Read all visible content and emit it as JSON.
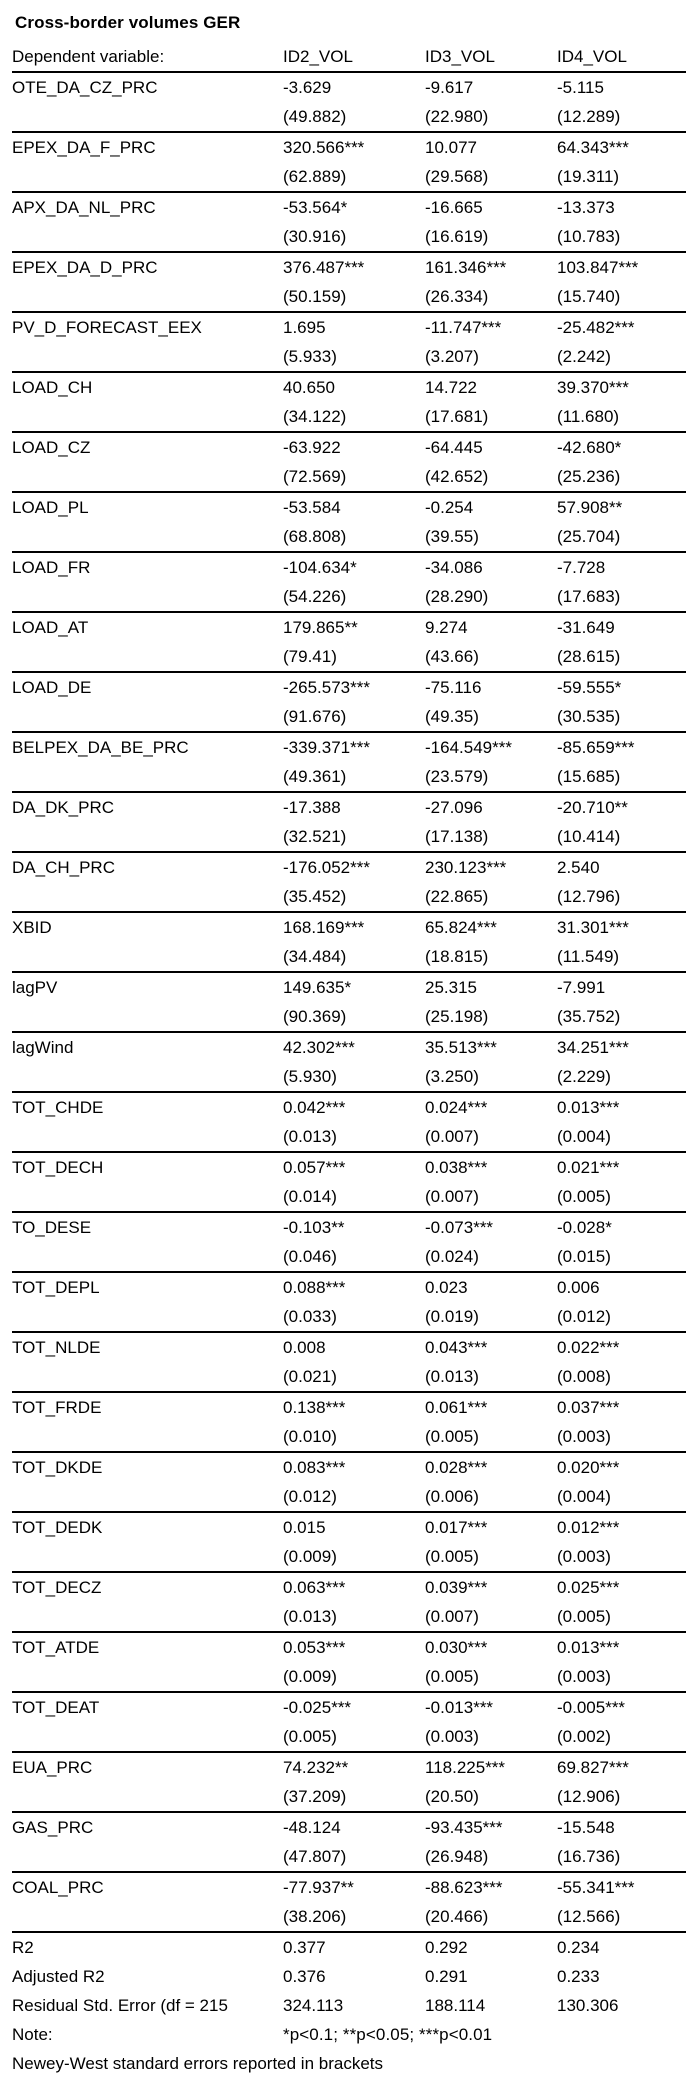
{
  "title": "Cross-border volumes GER",
  "header": {
    "label": "Dependent variable:",
    "columns": [
      "ID2_VOL",
      "ID3_VOL",
      "ID4_VOL"
    ]
  },
  "rows": [
    {
      "name": "OTE_DA_CZ_PRC",
      "coefs": [
        "-3.629",
        "-9.617",
        "-5.115"
      ],
      "errors": [
        "(49.882)",
        "(22.980)",
        "(12.289)"
      ]
    },
    {
      "name": "EPEX_DA_F_PRC",
      "coefs": [
        "320.566***",
        "10.077",
        "64.343***"
      ],
      "errors": [
        "(62.889)",
        "(29.568)",
        "(19.311)"
      ]
    },
    {
      "name": "APX_DA_NL_PRC",
      "coefs": [
        "-53.564*",
        "-16.665",
        "-13.373"
      ],
      "errors": [
        "(30.916)",
        "(16.619)",
        "(10.783)"
      ]
    },
    {
      "name": "EPEX_DA_D_PRC",
      "coefs": [
        "376.487***",
        "161.346***",
        "103.847***"
      ],
      "errors": [
        "(50.159)",
        "(26.334)",
        "(15.740)"
      ]
    },
    {
      "name": "PV_D_FORECAST_EEX",
      "coefs": [
        "1.695",
        "-11.747***",
        "-25.482***"
      ],
      "errors": [
        "(5.933)",
        "(3.207)",
        "(2.242)"
      ]
    },
    {
      "name": "LOAD_CH",
      "coefs": [
        "40.650",
        "14.722",
        "39.370***"
      ],
      "errors": [
        "(34.122)",
        "(17.681)",
        "(11.680)"
      ]
    },
    {
      "name": "LOAD_CZ",
      "coefs": [
        "-63.922",
        "-64.445",
        "-42.680*"
      ],
      "errors": [
        "(72.569)",
        "(42.652)",
        "(25.236)"
      ]
    },
    {
      "name": "LOAD_PL",
      "coefs": [
        "-53.584",
        "-0.254",
        "57.908**"
      ],
      "errors": [
        "(68.808)",
        "(39.55)",
        "(25.704)"
      ]
    },
    {
      "name": "LOAD_FR",
      "coefs": [
        "-104.634*",
        "-34.086",
        "-7.728"
      ],
      "errors": [
        "(54.226)",
        "(28.290)",
        "(17.683)"
      ]
    },
    {
      "name": "LOAD_AT",
      "coefs": [
        "179.865**",
        "9.274",
        "-31.649"
      ],
      "errors": [
        "(79.41)",
        "(43.66)",
        "(28.615)"
      ]
    },
    {
      "name": "LOAD_DE",
      "coefs": [
        "-265.573***",
        "-75.116",
        "-59.555*"
      ],
      "errors": [
        "(91.676)",
        "(49.35)",
        "(30.535)"
      ]
    },
    {
      "name": "BELPEX_DA_BE_PRC",
      "coefs": [
        "-339.371***",
        "-164.549***",
        "-85.659***"
      ],
      "errors": [
        "(49.361)",
        "(23.579)",
        "(15.685)"
      ]
    },
    {
      "name": "DA_DK_PRC",
      "coefs": [
        "-17.388",
        "-27.096",
        "-20.710**"
      ],
      "errors": [
        "(32.521)",
        "(17.138)",
        "(10.414)"
      ]
    },
    {
      "name": "DA_CH_PRC",
      "coefs": [
        "-176.052***",
        "230.123***",
        "2.540"
      ],
      "errors": [
        "(35.452)",
        "(22.865)",
        "(12.796)"
      ]
    },
    {
      "name": "XBID",
      "coefs": [
        "168.169***",
        "65.824***",
        "31.301***"
      ],
      "errors": [
        "(34.484)",
        "(18.815)",
        "(11.549)"
      ]
    },
    {
      "name": "lagPV",
      "coefs": [
        "149.635*",
        "25.315",
        "-7.991"
      ],
      "errors": [
        "(90.369)",
        "(25.198)",
        "(35.752)"
      ]
    },
    {
      "name": "lagWind",
      "coefs": [
        "42.302***",
        "35.513***",
        "34.251***"
      ],
      "errors": [
        "(5.930)",
        "(3.250)",
        "(2.229)"
      ]
    },
    {
      "name": "TOT_CHDE",
      "coefs": [
        "0.042***",
        "0.024***",
        "0.013***"
      ],
      "errors": [
        "(0.013)",
        "(0.007)",
        "(0.004)"
      ]
    },
    {
      "name": "TOT_DECH",
      "coefs": [
        "0.057***",
        "0.038***",
        "0.021***"
      ],
      "errors": [
        "(0.014)",
        "(0.007)",
        "(0.005)"
      ]
    },
    {
      "name": "TO_DESE",
      "coefs": [
        "-0.103**",
        "-0.073***",
        "-0.028*"
      ],
      "errors": [
        "(0.046)",
        "(0.024)",
        "(0.015)"
      ]
    },
    {
      "name": "TOT_DEPL",
      "coefs": [
        "0.088***",
        "0.023",
        "0.006"
      ],
      "errors": [
        "(0.033)",
        "(0.019)",
        "(0.012)"
      ]
    },
    {
      "name": "TOT_NLDE",
      "coefs": [
        "0.008",
        "0.043***",
        "0.022***"
      ],
      "errors": [
        "(0.021)",
        "(0.013)",
        "(0.008)"
      ]
    },
    {
      "name": "TOT_FRDE",
      "coefs": [
        "0.138***",
        "0.061***",
        "0.037***"
      ],
      "errors": [
        "(0.010)",
        "(0.005)",
        "(0.003)"
      ]
    },
    {
      "name": "TOT_DKDE",
      "coefs": [
        "0.083***",
        "0.028***",
        "0.020***"
      ],
      "errors": [
        "(0.012)",
        "(0.006)",
        "(0.004)"
      ]
    },
    {
      "name": "TOT_DEDK",
      "coefs": [
        "0.015",
        "0.017***",
        "0.012***"
      ],
      "errors": [
        "(0.009)",
        "(0.005)",
        "(0.003)"
      ]
    },
    {
      "name": "TOT_DECZ",
      "coefs": [
        "0.063***",
        "0.039***",
        "0.025***"
      ],
      "errors": [
        "(0.013)",
        "(0.007)",
        "(0.005)"
      ]
    },
    {
      "name": "TOT_ATDE",
      "coefs": [
        "0.053***",
        "0.030***",
        "0.013***"
      ],
      "errors": [
        "(0.009)",
        "(0.005)",
        "(0.003)"
      ]
    },
    {
      "name": "TOT_DEAT",
      "coefs": [
        "-0.025***",
        "-0.013***",
        "-0.005***"
      ],
      "errors": [
        "(0.005)",
        "(0.003)",
        "(0.002)"
      ]
    },
    {
      "name": "EUA_PRC",
      "coefs": [
        "74.232**",
        "118.225***",
        "69.827***"
      ],
      "errors": [
        "(37.209)",
        "(20.50)",
        "(12.906)"
      ]
    },
    {
      "name": "GAS_PRC",
      "coefs": [
        "-48.124",
        "-93.435***",
        "-15.548"
      ],
      "errors": [
        "(47.807)",
        "(26.948)",
        "(16.736)"
      ]
    },
    {
      "name": "COAL_PRC",
      "coefs": [
        "-77.937**",
        "-88.623***",
        "-55.341***"
      ],
      "errors": [
        "(38.206)",
        "(20.466)",
        "(12.566)"
      ]
    }
  ],
  "summary": [
    {
      "label": "R2",
      "values": [
        "0.377",
        "0.292",
        "0.234"
      ]
    },
    {
      "label": "Adjusted R2",
      "values": [
        "0.376",
        "0.291",
        "0.233"
      ]
    },
    {
      "label": "Residual Std. Error (df = 215",
      "values": [
        "324.113",
        "188.114",
        "130.306"
      ]
    }
  ],
  "note": {
    "label": "Note:",
    "text": "*p<0.1; **p<0.05; ***p<0.01"
  },
  "footer": "Newey-West standard errors reported in brackets",
  "colors": {
    "text": "#000000",
    "background": "#ffffff",
    "rule": "#000000"
  },
  "chart_data": {
    "type": "table",
    "title": "Cross-border volumes GER",
    "dependent_variables": [
      "ID2_VOL",
      "ID3_VOL",
      "ID4_VOL"
    ],
    "significance_legend": "*p<0.1; **p<0.05; ***p<0.01",
    "errors_note": "Newey-West standard errors reported in brackets"
  }
}
